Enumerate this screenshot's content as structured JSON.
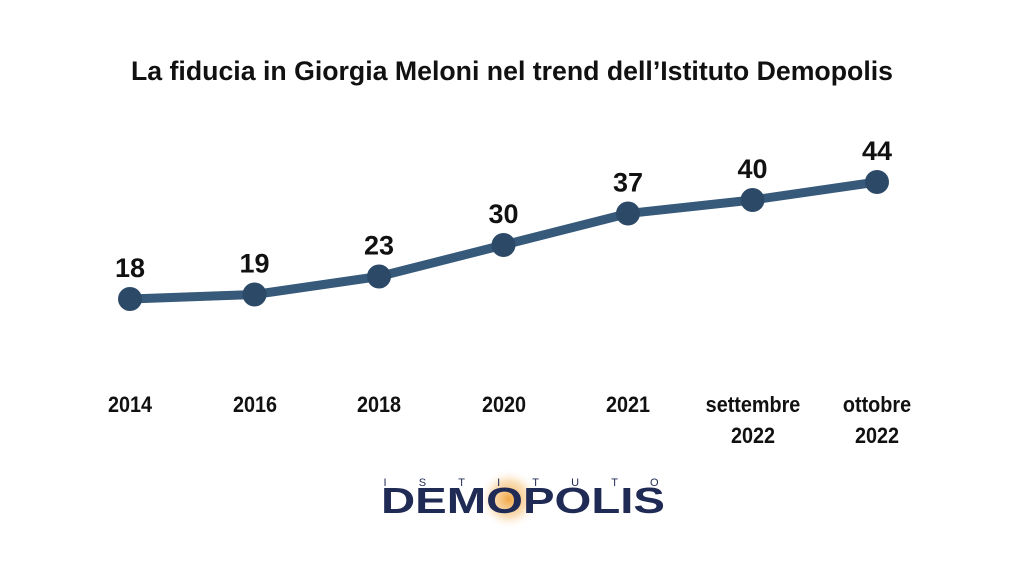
{
  "chart_data": {
    "type": "line",
    "title": "La fiducia in Giorgia Meloni nel trend dell’Istituto Demopolis",
    "categories": [
      "2014",
      "2016",
      "2018",
      "2020",
      "2021",
      "settembre 2022",
      "ottobre 2022"
    ],
    "values": [
      18,
      19,
      23,
      30,
      37,
      40,
      44
    ],
    "color": "#37597a"
  },
  "logo": {
    "top": "ISTITUTO",
    "name": "DEMOPOLIS"
  }
}
